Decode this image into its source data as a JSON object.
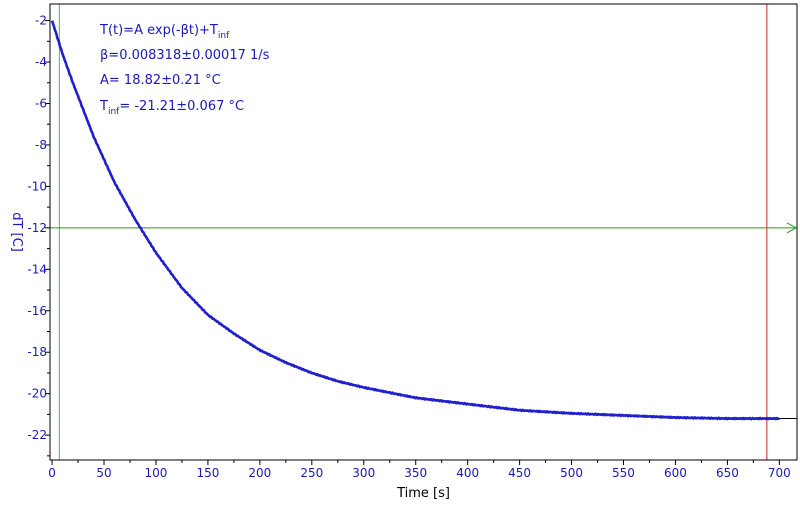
{
  "chart_data": {
    "type": "line",
    "title": "",
    "xlabel": "Time [s]",
    "ylabel": "dT [C]",
    "xlim": [
      -2,
      717
    ],
    "ylim": [
      -23.2,
      -1.2
    ],
    "x_ticks": [
      0,
      50,
      100,
      150,
      200,
      250,
      300,
      350,
      400,
      450,
      500,
      550,
      600,
      650,
      700
    ],
    "y_ticks": [
      -2,
      -4,
      -6,
      -8,
      -10,
      -12,
      -14,
      -16,
      -18,
      -20,
      -22
    ],
    "grid": false,
    "annotations": [
      {
        "parts": [
          {
            "t": "T(t)=A exp(-βt)+T"
          },
          {
            "t": "inf",
            "sub": true
          }
        ]
      },
      {
        "parts": [
          {
            "t": "β=0.008318±0.00017 1/s"
          }
        ]
      },
      {
        "parts": [
          {
            "t": "A= 18.82±0.21 °C"
          }
        ]
      },
      {
        "parts": [
          {
            "t": "T"
          },
          {
            "t": "inf",
            "sub": true
          },
          {
            "t": "= -21.21±0.067 °C"
          }
        ]
      }
    ],
    "series": [
      {
        "color": "#1f1fd0",
        "x": [
          0,
          10,
          20,
          30,
          40,
          50,
          60,
          70,
          80,
          90,
          100,
          125,
          150,
          175,
          200,
          225,
          250,
          275,
          300,
          350,
          400,
          450,
          500,
          550,
          600,
          650,
          700
        ],
        "y": [
          -2.0,
          -3.6,
          -5.0,
          -6.3,
          -7.6,
          -8.7,
          -9.8,
          -10.7,
          -11.6,
          -12.4,
          -13.2,
          -14.9,
          -16.2,
          -17.1,
          -17.9,
          -18.5,
          -19.0,
          -19.4,
          -19.7,
          -20.2,
          -20.5,
          -20.8,
          -20.95,
          -21.05,
          -21.15,
          -21.2,
          -21.2
        ]
      }
    ],
    "reference_lines": [
      {
        "orientation": "vertical",
        "x": 7,
        "color": "#33cc33"
      },
      {
        "orientation": "vertical",
        "x": 688,
        "color": "#dd2222"
      },
      {
        "orientation": "horizontal",
        "y": -12,
        "color": "#229922"
      },
      {
        "orientation": "horizontal",
        "y": -21.2,
        "color": "#000000"
      }
    ],
    "colors": {
      "axis_text": "#1a1ab8",
      "axis_label": "#1a1ab8",
      "x_label": "#000000",
      "frame": "#000000"
    }
  }
}
